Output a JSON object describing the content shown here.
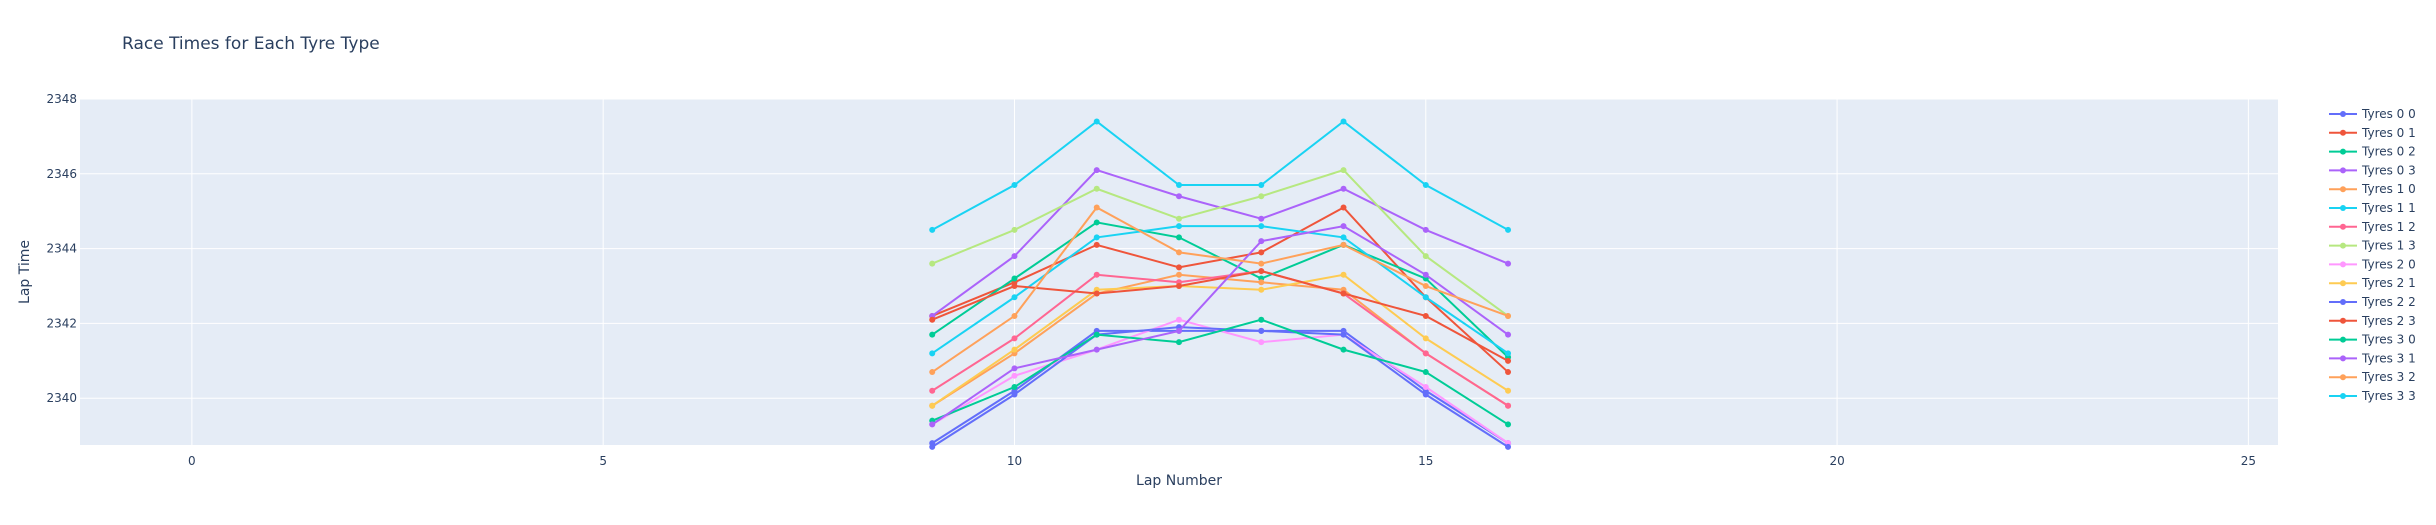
{
  "chart_data": {
    "type": "line",
    "title": "Race Times for Each Tyre Type",
    "xlabel": "Lap Number",
    "ylabel": "Lap Time",
    "xlim": [
      -1.36,
      25.36
    ],
    "ylim": [
      2338.75,
      2348
    ],
    "x_ticks": [
      0,
      5,
      10,
      15,
      20,
      25
    ],
    "y_ticks": [
      2340,
      2342,
      2344,
      2346,
      2348
    ],
    "grid": true,
    "legend_position": "right",
    "x": [
      9,
      10,
      11,
      12,
      13,
      14,
      15,
      16
    ],
    "series": [
      {
        "name": "Tyres 0 0",
        "color": "#636efa",
        "values": [
          2338.8,
          2340.2,
          2341.8,
          2341.8,
          2341.8,
          2341.8,
          2340.2,
          2338.8
        ]
      },
      {
        "name": "Tyres 0 1",
        "color": "#EF553B",
        "values": [
          2342.2,
          2343.1,
          2344.1,
          2343.5,
          2343.9,
          2345.1,
          2342.7,
          2340.7
        ]
      },
      {
        "name": "Tyres 0 2",
        "color": "#00cc96",
        "values": [
          2341.7,
          2343.2,
          2344.7,
          2344.3,
          2343.2,
          2344.1,
          2343.2,
          2341.1
        ]
      },
      {
        "name": "Tyres 0 3",
        "color": "#ab63fa",
        "values": [
          2342.2,
          2343.8,
          2346.1,
          2345.4,
          2344.8,
          2345.6,
          2344.5,
          2343.6
        ]
      },
      {
        "name": "Tyres 1 0",
        "color": "#FFA15A",
        "values": [
          2339.8,
          2341.2,
          2342.8,
          2343.3,
          2343.1,
          2342.9,
          2341.2,
          2339.8
        ]
      },
      {
        "name": "Tyres 1 1",
        "color": "#19d3f3",
        "values": [
          2341.2,
          2342.7,
          2344.3,
          2344.6,
          2344.6,
          2344.3,
          2342.7,
          2341.2
        ]
      },
      {
        "name": "Tyres 1 2",
        "color": "#FF6692",
        "values": [
          2340.2,
          2341.6,
          2343.3,
          2343.1,
          2343.4,
          2342.8,
          2341.2,
          2339.8
        ]
      },
      {
        "name": "Tyres 1 3",
        "color": "#B6E880",
        "values": [
          2343.6,
          2344.5,
          2345.6,
          2344.8,
          2345.4,
          2346.1,
          2343.8,
          2342.2
        ]
      },
      {
        "name": "Tyres 2 0",
        "color": "#FF97FF",
        "values": [
          2339.3,
          2340.6,
          2341.3,
          2342.1,
          2341.5,
          2341.7,
          2340.3,
          2338.8
        ]
      },
      {
        "name": "Tyres 2 1",
        "color": "#FECB52",
        "values": [
          2339.8,
          2341.3,
          2342.9,
          2343.0,
          2342.9,
          2343.3,
          2341.6,
          2340.2
        ]
      },
      {
        "name": "Tyres 2 2",
        "color": "#636efa",
        "values": [
          2338.7,
          2340.1,
          2341.7,
          2341.9,
          2341.8,
          2341.7,
          2340.1,
          2338.7
        ]
      },
      {
        "name": "Tyres 2 3",
        "color": "#EF553B",
        "values": [
          2342.1,
          2343.0,
          2342.8,
          2343.0,
          2343.4,
          2342.8,
          2342.2,
          2341.0
        ]
      },
      {
        "name": "Tyres 3 0",
        "color": "#00cc96",
        "values": [
          2339.4,
          2340.3,
          2341.7,
          2341.5,
          2342.1,
          2341.3,
          2340.7,
          2339.3
        ]
      },
      {
        "name": "Tyres 3 1",
        "color": "#ab63fa",
        "values": [
          2339.3,
          2340.8,
          2341.3,
          2341.8,
          2344.2,
          2344.6,
          2343.3,
          2341.7
        ]
      },
      {
        "name": "Tyres 3 2",
        "color": "#FFA15A",
        "values": [
          2340.7,
          2342.2,
          2345.1,
          2343.9,
          2343.6,
          2344.1,
          2343.0,
          2342.2
        ]
      },
      {
        "name": "Tyres 3 3",
        "color": "#19d3f3",
        "values": [
          2344.5,
          2345.7,
          2347.4,
          2345.7,
          2345.7,
          2347.4,
          2345.7,
          2344.5
        ]
      }
    ]
  }
}
